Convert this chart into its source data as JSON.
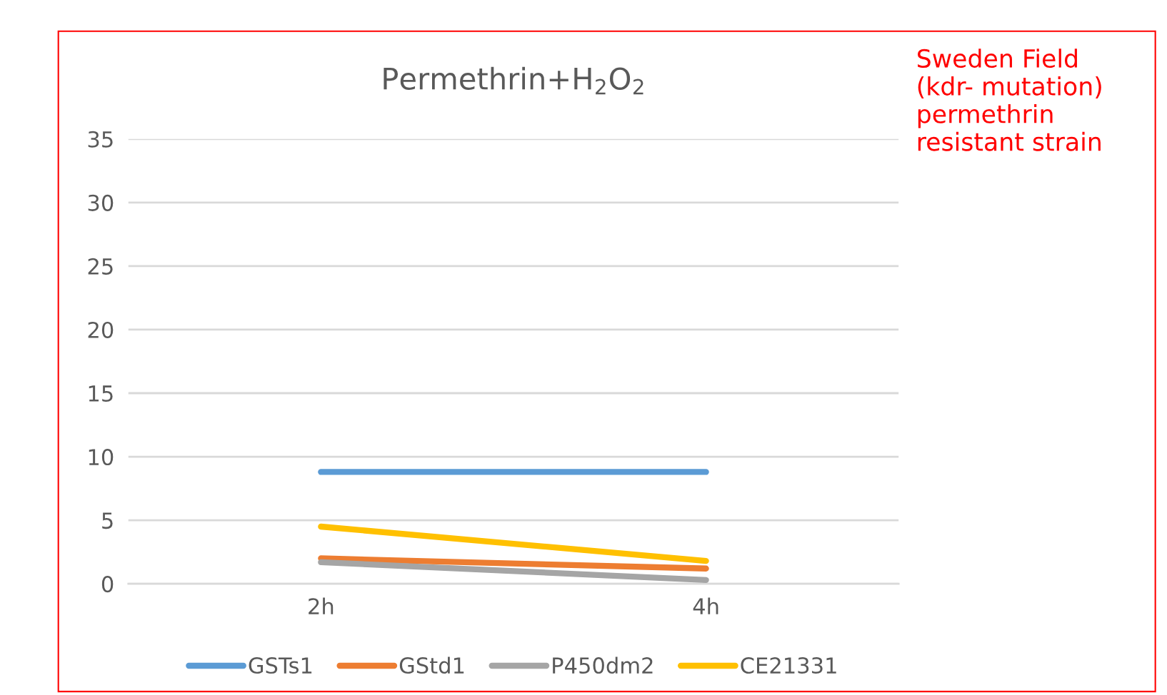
{
  "chart_data": {
    "type": "line",
    "title": "Permethrin+H$_{2}$O$_{2}$",
    "categories": [
      "2h",
      "4h"
    ],
    "series": [
      {
        "name": "GSTs1",
        "color": "#5b9bd5",
        "values": [
          8.8,
          8.8
        ]
      },
      {
        "name": "GStd1",
        "color": "#ed7d31",
        "values": [
          2.0,
          1.2
        ]
      },
      {
        "name": "P450dm2",
        "color": "#a5a5a5",
        "values": [
          1.7,
          0.3
        ]
      },
      {
        "name": "CE21331",
        "color": "#ffc000",
        "values": [
          4.5,
          1.8
        ]
      }
    ],
    "ylim": [
      0,
      35
    ],
    "yticks": [
      0,
      5,
      10,
      15,
      20,
      25,
      30,
      35
    ],
    "grid": "y",
    "legend": "bottom",
    "marker": "none",
    "line_style": "solid",
    "annotations": [
      "Sweden Field\n(kdr- mutation)\npermethrin\nresistant strain"
    ]
  }
}
